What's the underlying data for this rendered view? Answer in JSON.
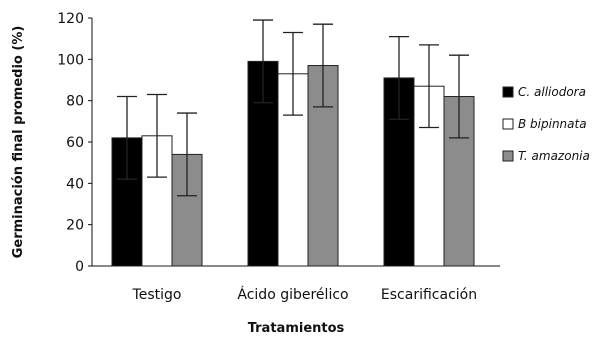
{
  "chart_data": {
    "type": "bar",
    "ylabel": "Germinación final promedio (%)",
    "xlabel": "Tratamientos",
    "ylim": [
      0,
      120
    ],
    "yticks": [
      0,
      20,
      40,
      60,
      80,
      100,
      120
    ],
    "categories": [
      "Testigo",
      "Ácido giberélico",
      "Escarificación"
    ],
    "series": [
      {
        "name": "C. alliodora",
        "color": "#000000",
        "values": [
          62,
          99,
          91
        ],
        "error": [
          20,
          20,
          20
        ]
      },
      {
        "name": "B bipinnata",
        "color": "#ffffff",
        "values": [
          63,
          93,
          87
        ],
        "error": [
          20,
          20,
          20
        ]
      },
      {
        "name": "T. amazonia",
        "color": "#8c8c8c",
        "values": [
          54,
          97,
          82
        ],
        "error": [
          20,
          20,
          20
        ]
      }
    ],
    "legend": {
      "position": "right"
    },
    "grid": false
  }
}
